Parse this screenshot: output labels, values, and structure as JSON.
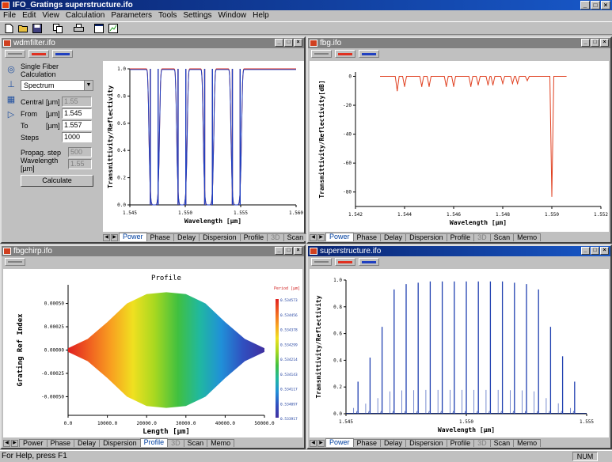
{
  "app": {
    "title": "IFO_Gratings superstructure.ifo"
  },
  "caption_buttons": [
    "_",
    "□",
    "×"
  ],
  "menu": [
    "File",
    "Edit",
    "View",
    "Calculation",
    "Parameters",
    "Tools",
    "Settings",
    "Window",
    "Help"
  ],
  "toolbar": [
    {
      "name": "new-icon",
      "glyph": "▫"
    },
    {
      "name": "open-icon",
      "glyph": "▤"
    },
    {
      "name": "save-icon",
      "glyph": "▪"
    },
    {
      "name": "copy-icon",
      "glyph": "▭"
    },
    {
      "name": "print-icon",
      "glyph": "▥"
    },
    {
      "name": "window-icon",
      "glyph": "▣"
    },
    {
      "name": "chart-icon",
      "glyph": "◩"
    }
  ],
  "tabs_power": [
    "Power",
    "Phase",
    "Delay",
    "Dispersion",
    "Profile",
    "3D",
    "Scan",
    "Memo"
  ],
  "tabs_profile": [
    "Power",
    "Phase",
    "Delay",
    "Dispersion",
    "Profile",
    "3D",
    "Scan",
    "Memo"
  ],
  "windows": {
    "w1": {
      "title": "wdmfilter.ifo",
      "form": {
        "heading1": "Single Fiber",
        "heading2": "Calculation",
        "mode": "Spectrum",
        "central_label": "Central",
        "central_unit": "[µm]",
        "central_value": "1.55",
        "from_label": "From",
        "from_unit": "[µm]",
        "from_value": "1.545",
        "to_label": "To",
        "to_unit": "[µm]",
        "to_value": "1.557",
        "steps_label": "Steps",
        "steps_value": "1000",
        "propag_label": "Propag. step",
        "propag_value": "500",
        "wavelength_label": "Wavelength [µm]",
        "wavelength_value": "1.55",
        "calculate": "Calculate"
      },
      "chart_data": {
        "type": "line",
        "xlabel": "Wavelength [µm]",
        "ylabel": "Transmittivity/Reflectivity",
        "xlim": [
          1.545,
          1.56
        ],
        "ylim": [
          0,
          1.0
        ],
        "xticks": [
          "1.545",
          "1.550",
          "1.555",
          "1.560"
        ],
        "yticks": [
          "0.0",
          "0.2",
          "0.4",
          "0.6",
          "0.8",
          "1.0"
        ],
        "series": [
          {
            "color": "#e03020",
            "notches": [
              1.5472,
              1.5497,
              1.5521,
              1.5546
            ]
          },
          {
            "color": "#2040c0",
            "notches": [
              1.5472,
              1.5497,
              1.5521,
              1.5546
            ]
          }
        ],
        "notch_width": 0.0005
      }
    },
    "w2": {
      "title": "fbg.ifo",
      "chart_data": {
        "type": "line",
        "xlabel": "Wavelength [µm]",
        "ylabel": "Transmittivity/Reflectivity[dB]",
        "xlim": [
          1.542,
          1.552
        ],
        "ylim": [
          -90,
          3
        ],
        "xticks": [
          "1.542",
          "1.544",
          "1.546",
          "1.548",
          "1.550",
          "1.552"
        ],
        "yticks": [
          "0",
          "-20",
          "-40",
          "-60",
          "-80"
        ],
        "series": [
          {
            "color": "#e04020",
            "x": [
              1.543,
              1.5437,
              1.544,
              1.5447,
              1.545,
              1.5457,
              1.546,
              1.5467,
              1.547,
              1.5474,
              1.5476,
              1.548,
              1.5484,
              1.5486,
              1.549,
              1.55,
              1.5506
            ],
            "y": [
              0,
              -10,
              -7,
              -7,
              -7,
              -7,
              -7,
              -7,
              -6,
              -6,
              -6,
              -5,
              -5,
              -5,
              -3,
              -83,
              0
            ]
          }
        ]
      }
    },
    "w3": {
      "title": "fbgchirp.ifo",
      "chart_data": {
        "type": "area",
        "title": "Profile",
        "xlabel": "Length [µm]",
        "ylabel": "Grating Ref Index",
        "xlim": [
          0,
          50000
        ],
        "ylim": [
          -0.0007,
          0.0007
        ],
        "xticks": [
          "0.0",
          "10000.0",
          "20000.0",
          "30000.0",
          "40000.0",
          "50000.0"
        ],
        "yticks": [
          "0.00050",
          "0.00025",
          "0.00000",
          "-0.00025",
          "-0.00050"
        ],
        "x": [
          0,
          5000,
          10000,
          15000,
          20000,
          25000,
          30000,
          35000,
          40000,
          45000,
          50000
        ],
        "y": [
          2e-05,
          0.00012,
          0.0003,
          0.0005,
          0.0006,
          0.00062,
          0.0006,
          0.0005,
          0.0003,
          0.00012,
          2e-05
        ],
        "legend_title": "Period [µm]",
        "legend": [
          "0.534573",
          "0.534456",
          "0.534378",
          "0.534299",
          "0.534214",
          "0.534143",
          "0.534117",
          "0.534097",
          "0.533917"
        ]
      }
    },
    "w4": {
      "title": "superstructure.ifo",
      "chart_data": {
        "type": "line",
        "xlabel": "Wavelength [µm]",
        "ylabel": "Transmittivity/Reflectivity",
        "xlim": [
          1.545,
          1.555
        ],
        "ylim": [
          0,
          1.0
        ],
        "xticks": [
          "1.545",
          "1.550",
          "1.555"
        ],
        "yticks": [
          "0.0",
          "0.2",
          "0.4",
          "0.6",
          "0.8",
          "1.0"
        ],
        "series": [
          {
            "color": "#2040b0",
            "x": [
              1.5455,
              1.546,
              1.5465,
              1.547,
              1.5475,
              1.548,
              1.5485,
              1.549,
              1.5495,
              1.55,
              1.5505,
              1.551,
              1.5515,
              1.552,
              1.5525,
              1.553,
              1.5535,
              1.554,
              1.5545
            ],
            "y": [
              0.24,
              0.42,
              0.65,
              0.93,
              0.97,
              0.98,
              0.99,
              0.99,
              0.99,
              0.99,
              0.99,
              0.99,
              0.99,
              0.98,
              0.97,
              0.93,
              0.65,
              0.43,
              0.24
            ]
          }
        ]
      }
    }
  },
  "status": {
    "text": "For Help, press F1",
    "num": "NUM"
  }
}
